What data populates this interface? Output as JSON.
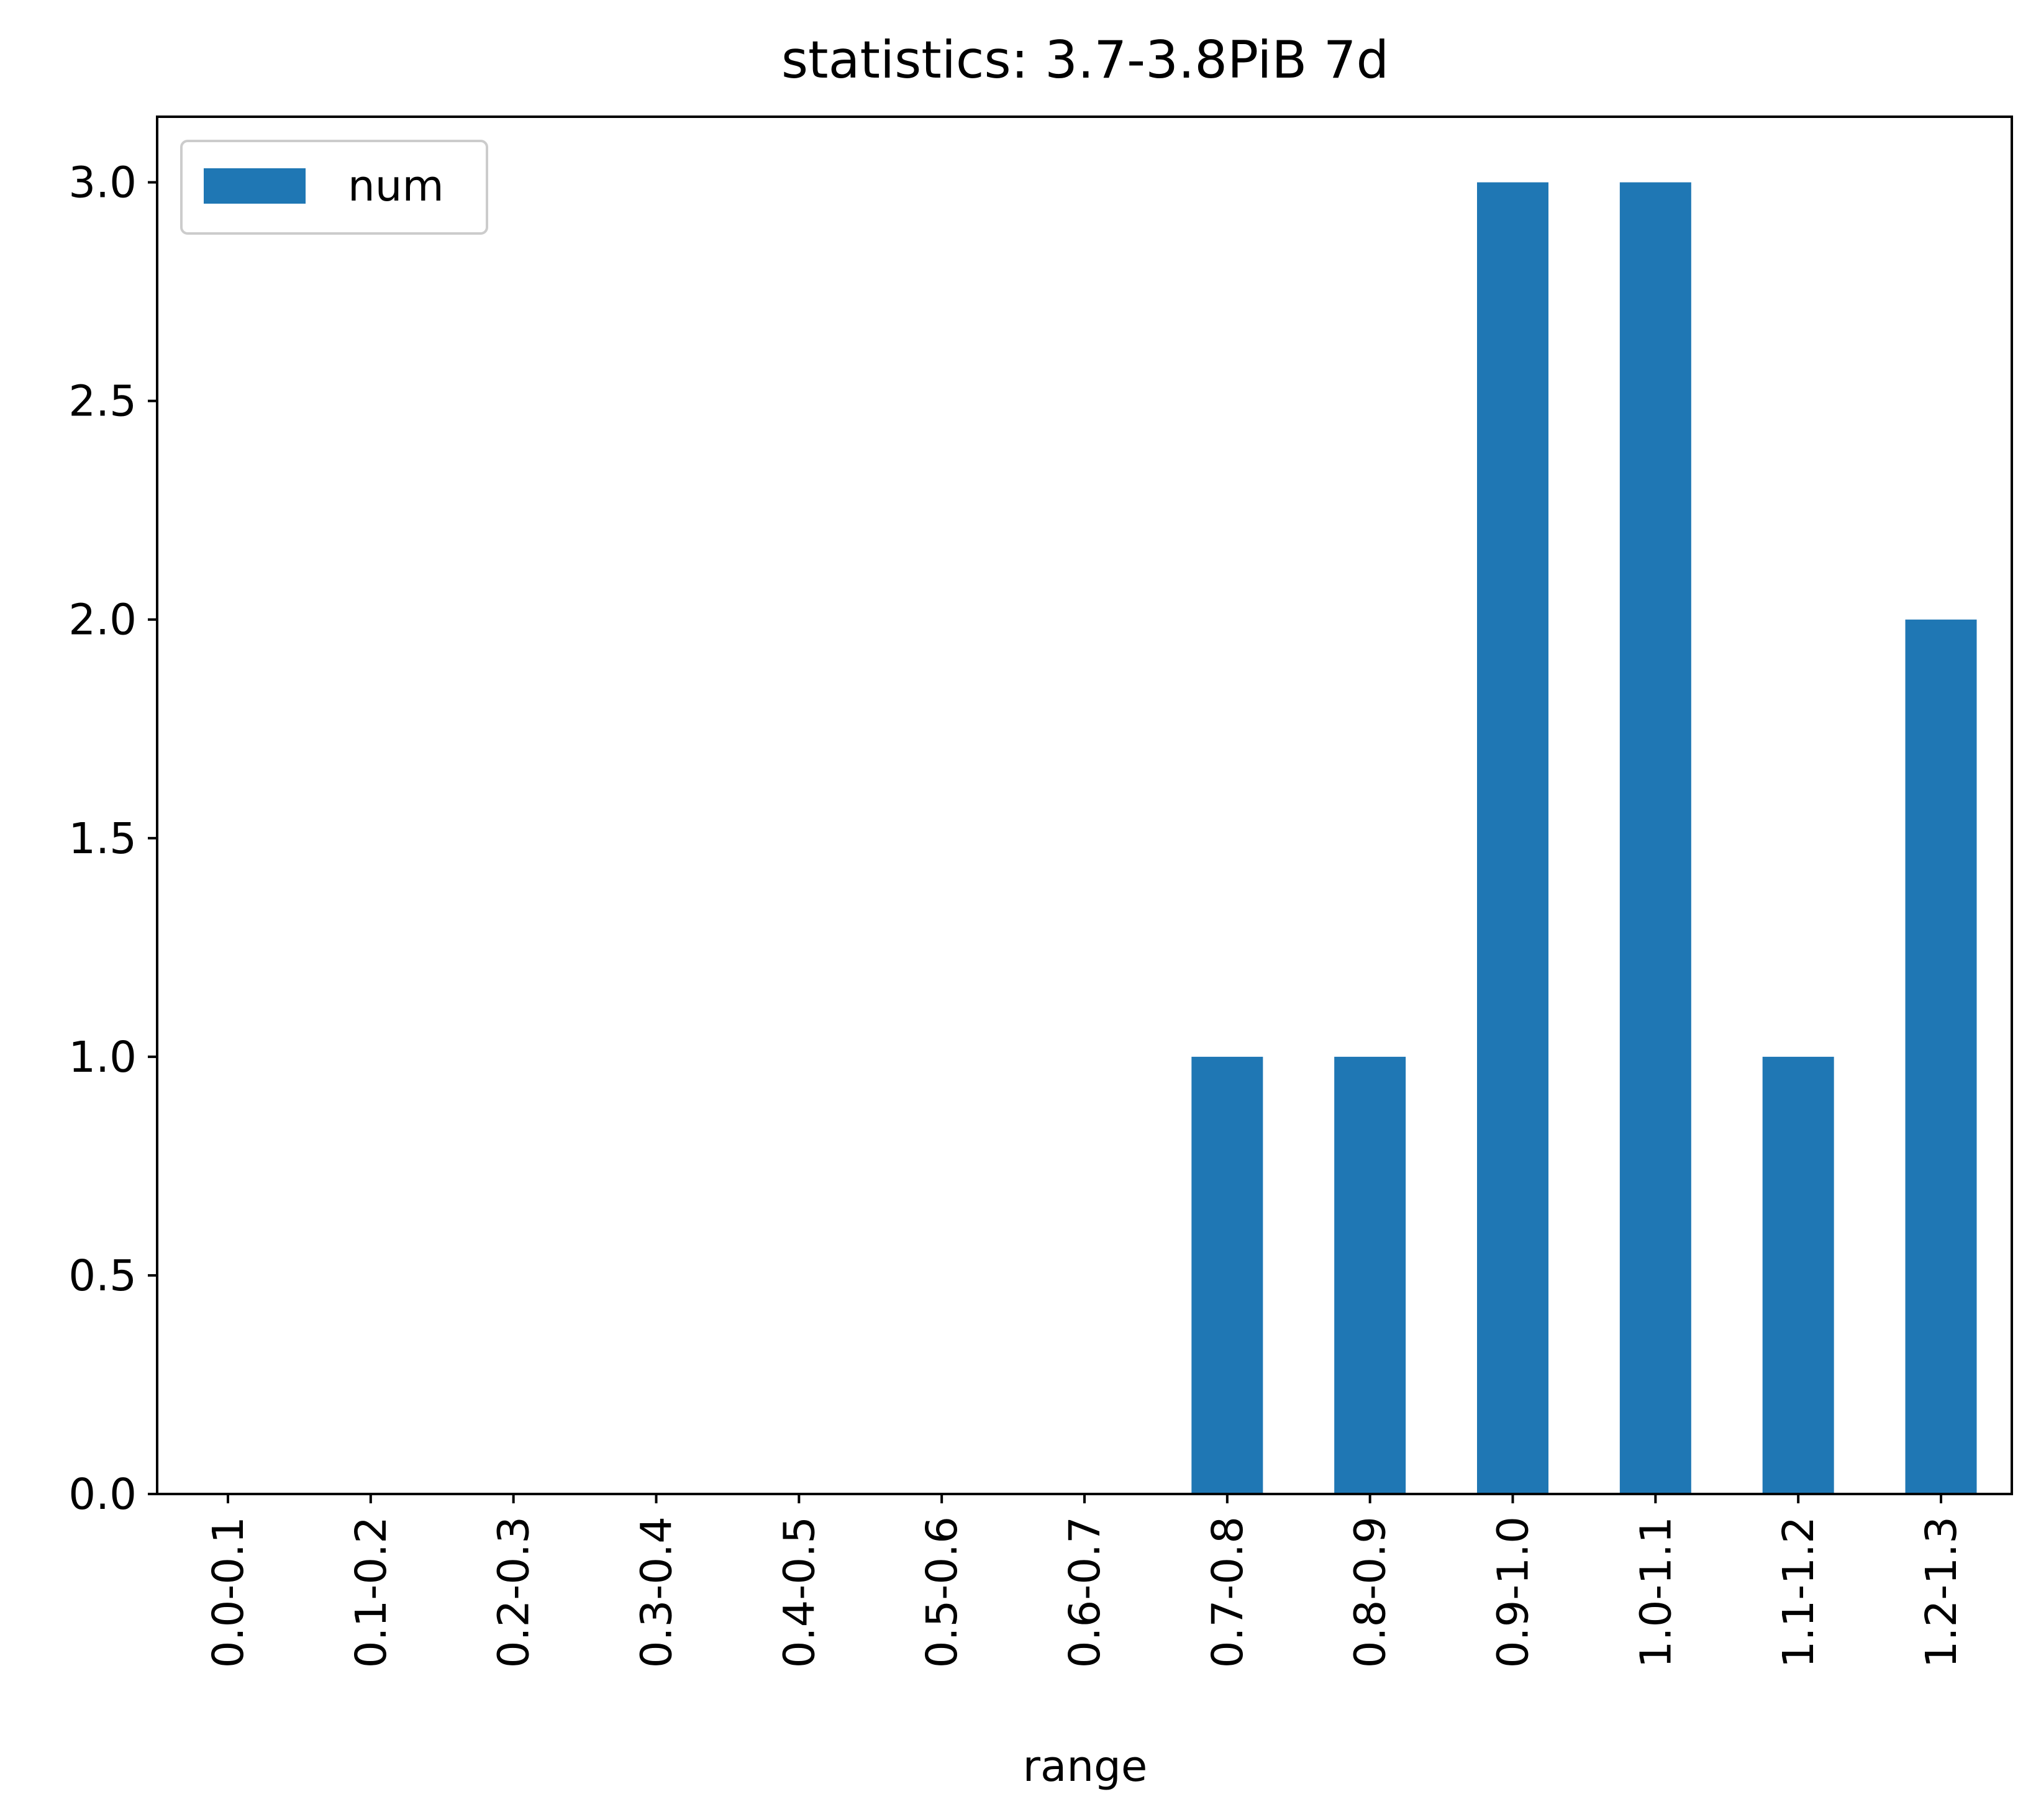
{
  "chart_data": {
    "type": "bar",
    "title": "statistics: 3.7-3.8PiB 7d",
    "xlabel": "range",
    "ylabel": "",
    "categories": [
      "0.0-0.1",
      "0.1-0.2",
      "0.2-0.3",
      "0.3-0.4",
      "0.4-0.5",
      "0.5-0.6",
      "0.6-0.7",
      "0.7-0.8",
      "0.8-0.9",
      "0.9-1.0",
      "1.0-1.1",
      "1.1-1.2",
      "1.2-1.3"
    ],
    "series": [
      {
        "name": "num",
        "values": [
          0,
          0,
          0,
          0,
          0,
          0,
          0,
          1,
          1,
          3,
          3,
          1,
          2
        ],
        "color": "#1f77b4"
      }
    ],
    "ylim": [
      0,
      3.15
    ],
    "yticks": [
      "0.0",
      "0.5",
      "1.0",
      "1.5",
      "2.0",
      "2.5",
      "3.0"
    ],
    "grid": false,
    "legend_position": "top-left"
  }
}
